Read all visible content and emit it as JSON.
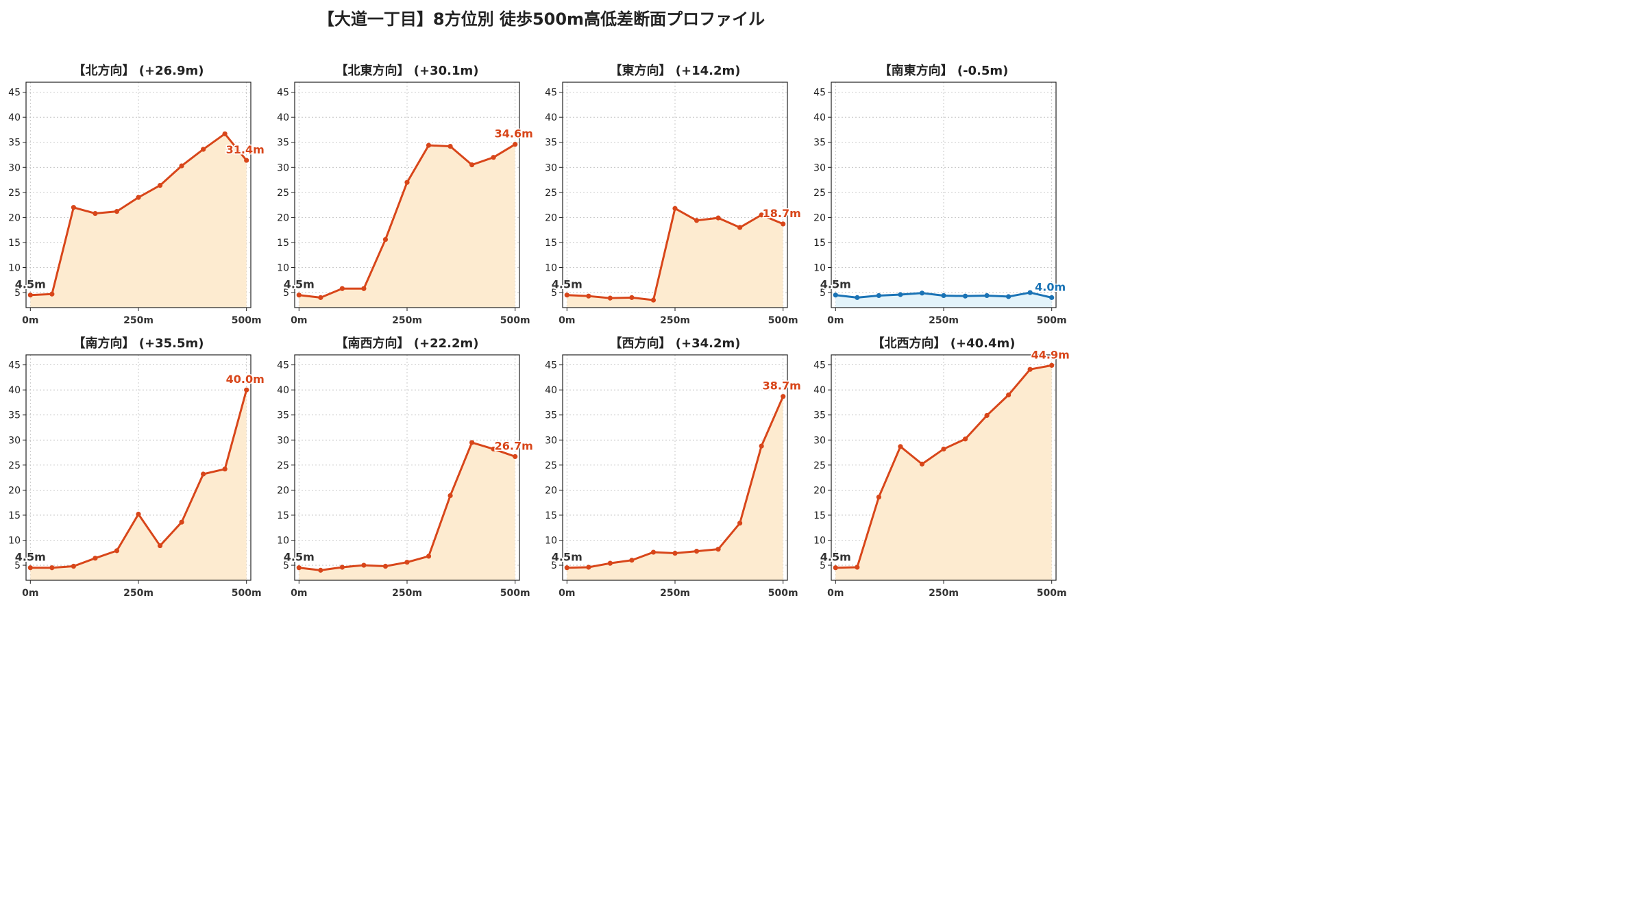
{
  "title": "【大道一丁目】8方位別 徒歩500m高低差断面プロファイル",
  "colors": {
    "rise_line": "#d8461a",
    "rise_fill": "#fdebd0",
    "flat_line": "#1a73b5",
    "flat_fill": "#e3f3fa",
    "start_label": "#333333",
    "grid": "#bbbbbb"
  },
  "chart_data": [
    {
      "type": "line",
      "title": "【北方向】 (+26.9m)",
      "x": [
        0,
        50,
        100,
        150,
        200,
        250,
        300,
        350,
        400,
        450,
        500
      ],
      "y": [
        4.5,
        4.7,
        22.0,
        20.8,
        21.2,
        24.0,
        26.4,
        30.3,
        33.6,
        36.7,
        31.4
      ],
      "start_label": "4.5m",
      "end_label": "31.4m",
      "style": "rise",
      "xticks": [
        "0m",
        "250m",
        "500m"
      ],
      "yticks": [
        5,
        10,
        15,
        20,
        25,
        30,
        35,
        40,
        45
      ],
      "ylim": [
        2,
        47
      ],
      "xlim": [
        -10,
        510
      ],
      "grid": true
    },
    {
      "type": "line",
      "title": "【北東方向】 (+30.1m)",
      "x": [
        0,
        50,
        100,
        150,
        200,
        250,
        300,
        350,
        400,
        450,
        500
      ],
      "y": [
        4.5,
        4.0,
        5.8,
        5.8,
        15.6,
        27.0,
        34.4,
        34.2,
        30.5,
        32.0,
        34.6
      ],
      "start_label": "4.5m",
      "end_label": "34.6m",
      "style": "rise",
      "xticks": [
        "0m",
        "250m",
        "500m"
      ],
      "yticks": [
        5,
        10,
        15,
        20,
        25,
        30,
        35,
        40,
        45
      ],
      "ylim": [
        2,
        47
      ],
      "xlim": [
        -10,
        510
      ],
      "grid": true
    },
    {
      "type": "line",
      "title": "【東方向】 (+14.2m)",
      "x": [
        0,
        50,
        100,
        150,
        200,
        250,
        300,
        350,
        400,
        450,
        500
      ],
      "y": [
        4.5,
        4.3,
        3.9,
        4.0,
        3.5,
        21.8,
        19.4,
        19.9,
        18.0,
        20.5,
        18.7
      ],
      "start_label": "4.5m",
      "end_label": "18.7m",
      "style": "rise",
      "xticks": [
        "0m",
        "250m",
        "500m"
      ],
      "yticks": [
        5,
        10,
        15,
        20,
        25,
        30,
        35,
        40,
        45
      ],
      "ylim": [
        2,
        47
      ],
      "xlim": [
        -10,
        510
      ],
      "grid": true
    },
    {
      "type": "line",
      "title": "【南東方向】 (-0.5m)",
      "x": [
        0,
        50,
        100,
        150,
        200,
        250,
        300,
        350,
        400,
        450,
        500
      ],
      "y": [
        4.5,
        4.0,
        4.4,
        4.6,
        4.9,
        4.4,
        4.3,
        4.4,
        4.2,
        5.0,
        4.0
      ],
      "start_label": "4.5m",
      "end_label": "4.0m",
      "style": "flat",
      "xticks": [
        "0m",
        "250m",
        "500m"
      ],
      "yticks": [
        5,
        10,
        15,
        20,
        25,
        30,
        35,
        40,
        45
      ],
      "ylim": [
        2,
        47
      ],
      "xlim": [
        -10,
        510
      ],
      "grid": true
    },
    {
      "type": "line",
      "title": "【南方向】 (+35.5m)",
      "x": [
        0,
        50,
        100,
        150,
        200,
        250,
        300,
        350,
        400,
        450,
        500
      ],
      "y": [
        4.5,
        4.5,
        4.8,
        6.4,
        7.9,
        15.2,
        8.9,
        13.6,
        23.2,
        24.2,
        40.0
      ],
      "start_label": "4.5m",
      "end_label": "40.0m",
      "style": "rise",
      "xticks": [
        "0m",
        "250m",
        "500m"
      ],
      "yticks": [
        5,
        10,
        15,
        20,
        25,
        30,
        35,
        40,
        45
      ],
      "ylim": [
        2,
        47
      ],
      "xlim": [
        -10,
        510
      ],
      "grid": true
    },
    {
      "type": "line",
      "title": "【南西方向】 (+22.2m)",
      "x": [
        0,
        50,
        100,
        150,
        200,
        250,
        300,
        350,
        400,
        450,
        500
      ],
      "y": [
        4.5,
        4.0,
        4.6,
        5.0,
        4.8,
        5.6,
        6.8,
        18.9,
        29.5,
        28.2,
        26.7
      ],
      "start_label": "4.5m",
      "end_label": "26.7m",
      "style": "rise",
      "xticks": [
        "0m",
        "250m",
        "500m"
      ],
      "yticks": [
        5,
        10,
        15,
        20,
        25,
        30,
        35,
        40,
        45
      ],
      "ylim": [
        2,
        47
      ],
      "xlim": [
        -10,
        510
      ],
      "grid": true
    },
    {
      "type": "line",
      "title": "【西方向】 (+34.2m)",
      "x": [
        0,
        50,
        100,
        150,
        200,
        250,
        300,
        350,
        400,
        450,
        500
      ],
      "y": [
        4.5,
        4.6,
        5.4,
        6.0,
        7.6,
        7.4,
        7.8,
        8.2,
        13.4,
        28.8,
        38.7
      ],
      "start_label": "4.5m",
      "end_label": "38.7m",
      "style": "rise",
      "xticks": [
        "0m",
        "250m",
        "500m"
      ],
      "yticks": [
        5,
        10,
        15,
        20,
        25,
        30,
        35,
        40,
        45
      ],
      "ylim": [
        2,
        47
      ],
      "xlim": [
        -10,
        510
      ],
      "grid": true
    },
    {
      "type": "line",
      "title": "【北西方向】 (+40.4m)",
      "x": [
        0,
        50,
        100,
        150,
        200,
        250,
        300,
        350,
        400,
        450,
        500
      ],
      "y": [
        4.5,
        4.6,
        18.6,
        28.7,
        25.2,
        28.2,
        30.2,
        34.9,
        39.0,
        44.1,
        44.9
      ],
      "start_label": "4.5m",
      "end_label": "44.9m",
      "style": "rise",
      "xticks": [
        "0m",
        "250m",
        "500m"
      ],
      "yticks": [
        5,
        10,
        15,
        20,
        25,
        30,
        35,
        40,
        45
      ],
      "ylim": [
        2,
        47
      ],
      "xlim": [
        -10,
        510
      ],
      "grid": true
    }
  ]
}
